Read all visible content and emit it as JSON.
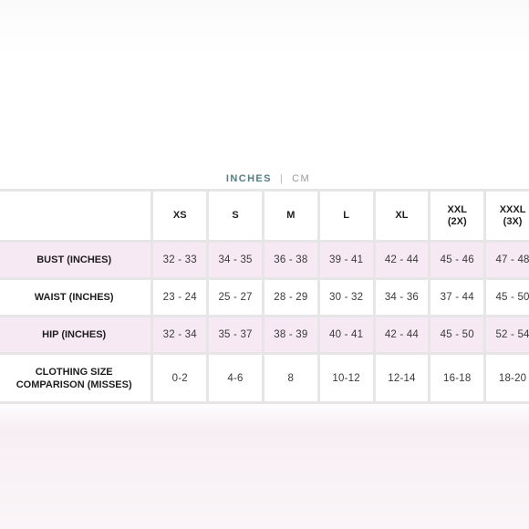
{
  "units": {
    "active": "INCHES",
    "separator": "|",
    "inactive": "CM"
  },
  "table": {
    "sizes": [
      "XS",
      "S",
      "M",
      "L",
      "XL",
      "XXL\n(2X)",
      "XXXL\n(3X)"
    ],
    "rows": [
      {
        "label": "BUST (INCHES)",
        "values": [
          "32 - 33",
          "34 - 35",
          "36 - 38",
          "39 - 41",
          "42 - 44",
          "45 - 46",
          "47 - 48"
        ]
      },
      {
        "label": "WAIST (INCHES)",
        "values": [
          "23 - 24",
          "25 - 27",
          "28 - 29",
          "30 - 32",
          "34 - 36",
          "37 - 44",
          "45 - 50"
        ]
      },
      {
        "label": "HIP (INCHES)",
        "values": [
          "32 - 34",
          "35 - 37",
          "38 - 39",
          "40 - 41",
          "42 - 44",
          "45 - 50",
          "52 - 54"
        ]
      },
      {
        "label": "CLOTHING SIZE\nCOMPARISON (MISSES)",
        "values": [
          "0-2",
          "4-6",
          "8",
          "10-12",
          "12-14",
          "16-18",
          "18-20"
        ]
      }
    ]
  },
  "colors": {
    "active_unit": "#4f8186",
    "row_highlight": "#f6e9f4",
    "grid_line": "#e6e6e6"
  }
}
